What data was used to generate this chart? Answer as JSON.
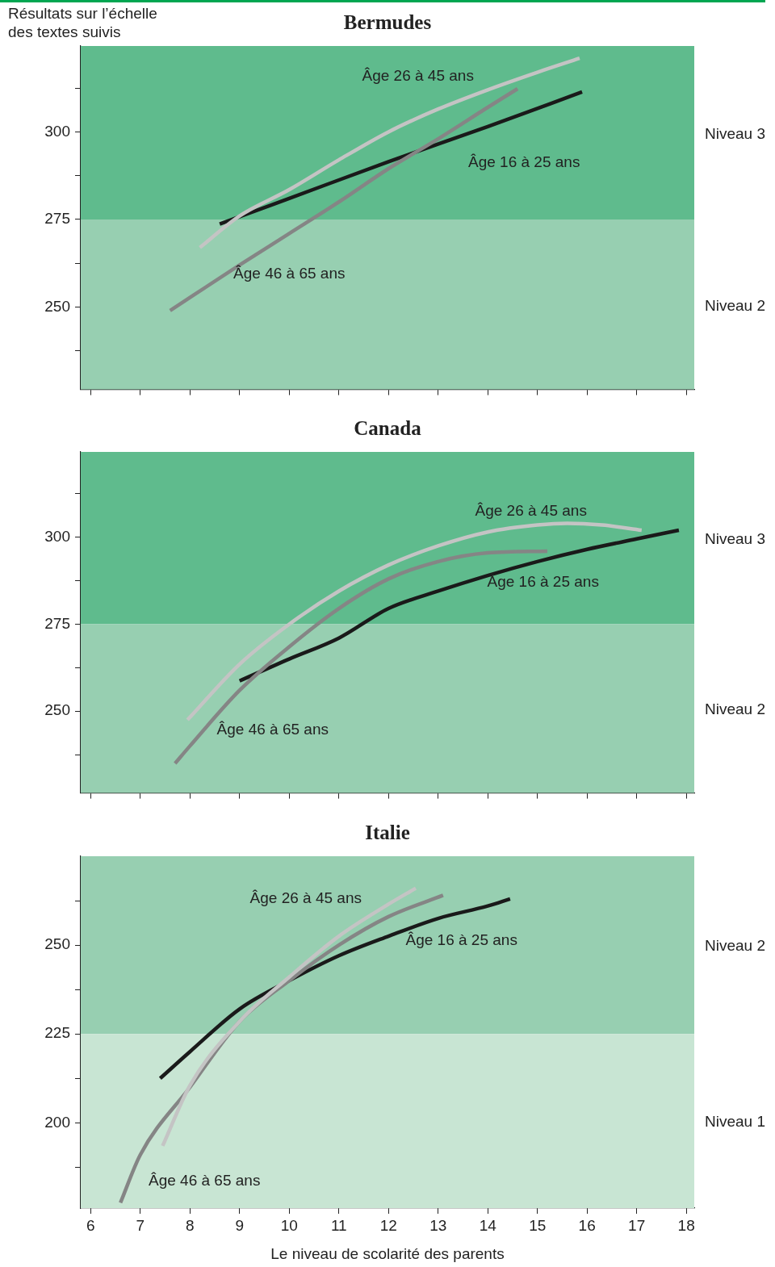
{
  "chart_data": [
    {
      "type": "line",
      "title": "Bermudes",
      "ylabel": "Résultats sur l’échelle des textes suivis",
      "xlim": [
        5.8,
        18.16
      ],
      "xticks": [
        6,
        7,
        8,
        9,
        10,
        11,
        12,
        13,
        14,
        15,
        16,
        17,
        18
      ],
      "ylim": [
        226.5,
        324.5
      ],
      "yticks": [
        {
          "value": 237.5,
          "label": null
        },
        250,
        {
          "value": 262.5,
          "label": null
        },
        275,
        {
          "value": 287.5,
          "label": null
        },
        300,
        {
          "value": 312.5,
          "label": null
        }
      ],
      "tick_labels": "y",
      "grid": false,
      "legend": false,
      "marker": "none",
      "line_style": "solid",
      "bands": [
        {
          "axis": "y",
          "from": 275,
          "to": 324.5,
          "label": "Niveau 3",
          "color": "#5fbb8d"
        },
        {
          "axis": "y",
          "from": 226.5,
          "to": 275,
          "label": "Niveau 2",
          "color": "#97cfb1"
        }
      ],
      "series": [
        {
          "name": "Âge 26 à 45 ans",
          "color": "#c4c4c4",
          "x": [
            8.2,
            9,
            10,
            11,
            12,
            13,
            14,
            15,
            15.85
          ],
          "values": [
            267,
            276,
            283.5,
            292,
            300,
            306.5,
            312,
            317,
            321
          ]
        },
        {
          "name": "Âge 46 à 65 ans",
          "color": "#858585",
          "x": [
            7.6,
            9,
            10,
            11,
            12,
            13,
            14,
            14.6
          ],
          "values": [
            249,
            262,
            271,
            280,
            289.5,
            298,
            307,
            312.3
          ]
        },
        {
          "name": "Âge 16 à 25 ans",
          "color": "#1a1a1a",
          "x": [
            8.6,
            10,
            12,
            14,
            15.9
          ],
          "values": [
            273.7,
            281,
            291.5,
            301.5,
            311.4
          ]
        }
      ]
    },
    {
      "type": "line",
      "title": "Canada",
      "xlim": [
        5.8,
        18.16
      ],
      "xticks": [
        6,
        7,
        8,
        9,
        10,
        11,
        12,
        13,
        14,
        15,
        16,
        17,
        18
      ],
      "ylim": [
        226.5,
        324.5
      ],
      "yticks": [
        {
          "value": 237.5,
          "label": null
        },
        250,
        {
          "value": 262.5,
          "label": null
        },
        275,
        {
          "value": 287.5,
          "label": null
        },
        300,
        {
          "value": 312.5,
          "label": null
        }
      ],
      "tick_labels": "y",
      "grid": false,
      "legend": false,
      "marker": "none",
      "line_style": "solid",
      "bands": [
        {
          "axis": "y",
          "from": 275,
          "to": 324.5,
          "label": "Niveau 3",
          "color": "#5fbb8d"
        },
        {
          "axis": "y",
          "from": 226.5,
          "to": 275,
          "label": "Niveau 2",
          "color": "#97cfb1"
        }
      ],
      "series": [
        {
          "name": "Âge 26 à 45 ans",
          "color": "#c4c4c4",
          "x": [
            7.95,
            9,
            10,
            11,
            12,
            13,
            14,
            15,
            15.6,
            16.3,
            17.1
          ],
          "values": [
            247.5,
            263.5,
            275,
            284.5,
            292,
            297.5,
            301.5,
            303.5,
            304,
            303.5,
            302
          ]
        },
        {
          "name": "Âge 46 à 65 ans",
          "color": "#858585",
          "x": [
            7.7,
            8,
            9,
            10,
            11,
            12,
            13,
            14,
            15.2
          ],
          "values": [
            235,
            240,
            256,
            268.5,
            279.5,
            288,
            293,
            295.5,
            296
          ]
        },
        {
          "name": "Âge 16 à 25 ans",
          "color": "#1a1a1a",
          "x": [
            9,
            10,
            11,
            12,
            13,
            14,
            15,
            16,
            17,
            17.85
          ],
          "values": [
            258.7,
            265,
            271,
            279.5,
            284.5,
            289,
            293,
            296.5,
            299.5,
            302
          ]
        }
      ]
    },
    {
      "type": "line",
      "title": "Italie",
      "xlabel": "Le niveau de scolarité des parents",
      "xlim": [
        5.8,
        18.16
      ],
      "xticks": [
        6,
        7,
        8,
        9,
        10,
        11,
        12,
        13,
        14,
        15,
        16,
        17,
        18
      ],
      "ylim": [
        176,
        275
      ],
      "yticks": [
        {
          "value": 187.5,
          "label": null
        },
        200,
        {
          "value": 212.5,
          "label": null
        },
        225,
        {
          "value": 237.5,
          "label": null
        },
        250,
        {
          "value": 262.5,
          "label": null
        }
      ],
      "grid": false,
      "legend": false,
      "marker": "none",
      "line_style": "solid",
      "bands": [
        {
          "axis": "y",
          "from": 225,
          "to": 275,
          "label": "Niveau 2",
          "color": "#97cfb1"
        },
        {
          "axis": "y",
          "from": 176,
          "to": 225,
          "label": "Niveau 1",
          "color": "#c8e5d3"
        }
      ],
      "series": [
        {
          "name": "Âge 26 à 45 ans",
          "color": "#c4c4c4",
          "x": [
            7.45,
            8,
            9,
            10,
            11,
            12,
            12.55
          ],
          "values": [
            193.5,
            210.5,
            228.5,
            241,
            252.5,
            261.5,
            266
          ]
        },
        {
          "name": "Âge 46 à 65 ans",
          "color": "#858585",
          "x": [
            6.6,
            7,
            8,
            9,
            10,
            11,
            12,
            13.1
          ],
          "values": [
            177.5,
            191,
            210,
            228.5,
            240,
            250,
            258,
            264
          ]
        },
        {
          "name": "Âge 16 à 25 ans",
          "color": "#1a1a1a",
          "x": [
            7.4,
            8,
            9,
            10,
            11,
            12,
            13,
            14,
            14.45
          ],
          "values": [
            212.5,
            220,
            232,
            240,
            247,
            252.5,
            257.5,
            261,
            263
          ]
        }
      ]
    }
  ]
}
